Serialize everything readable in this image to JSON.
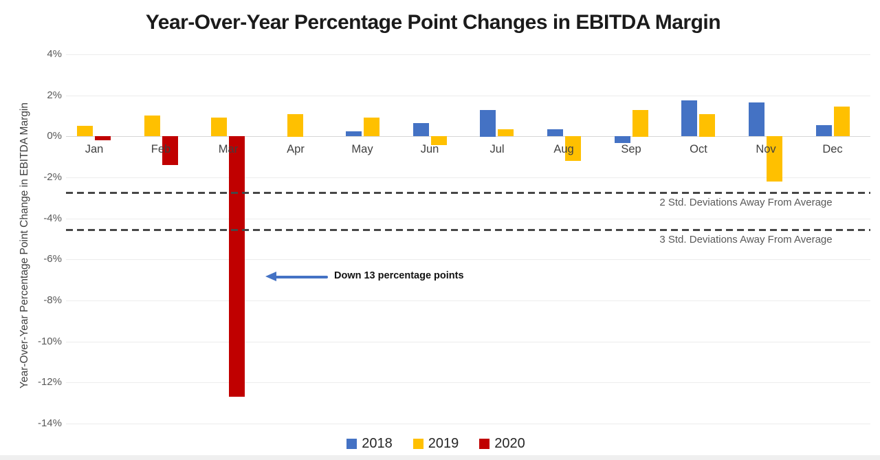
{
  "chart_data": {
    "type": "bar",
    "title": "Year-Over-Year Percentage Point Changes in EBITDA Margin",
    "xlabel": "",
    "ylabel": "Year-Over-Year Percentage Point Change in EBITDA Margin",
    "categories": [
      "Jan",
      "Feb",
      "Mar",
      "Apr",
      "May",
      "Jun",
      "Jul",
      "Aug",
      "Sep",
      "Oct",
      "Nov",
      "Dec"
    ],
    "series": [
      {
        "name": "2018",
        "color": "#4472C4",
        "values": [
          null,
          null,
          null,
          null,
          0.25,
          0.65,
          1.3,
          0.35,
          -0.35,
          1.75,
          1.65,
          0.55
        ]
      },
      {
        "name": "2019",
        "color": "#FFC000",
        "values": [
          0.5,
          1.0,
          0.9,
          1.1,
          0.9,
          -0.45,
          0.35,
          -1.2,
          1.3,
          1.1,
          -2.2,
          1.45
        ]
      },
      {
        "name": "2020",
        "color": "#C00000",
        "values": [
          -0.2,
          -1.4,
          -12.7,
          null,
          null,
          null,
          null,
          null,
          null,
          null,
          null,
          null
        ]
      }
    ],
    "ylim": [
      -14,
      4
    ],
    "ytick_step": 2,
    "ytick_suffix": "%",
    "grid": true,
    "legend_position": "bottom",
    "reference_lines": [
      {
        "value": -2.7,
        "label": "2 Std. Deviations Away From Average",
        "style": "dashed",
        "color": "#474747"
      },
      {
        "value": -4.5,
        "label": "3 Std. Deviations Away From Average",
        "style": "dashed",
        "color": "#474747"
      }
    ],
    "annotation": {
      "text": "Down 13 percentage points",
      "target_category": "Mar",
      "target_series": "2020",
      "arrow_direction": "left",
      "arrow_color": "#4472C4"
    }
  }
}
